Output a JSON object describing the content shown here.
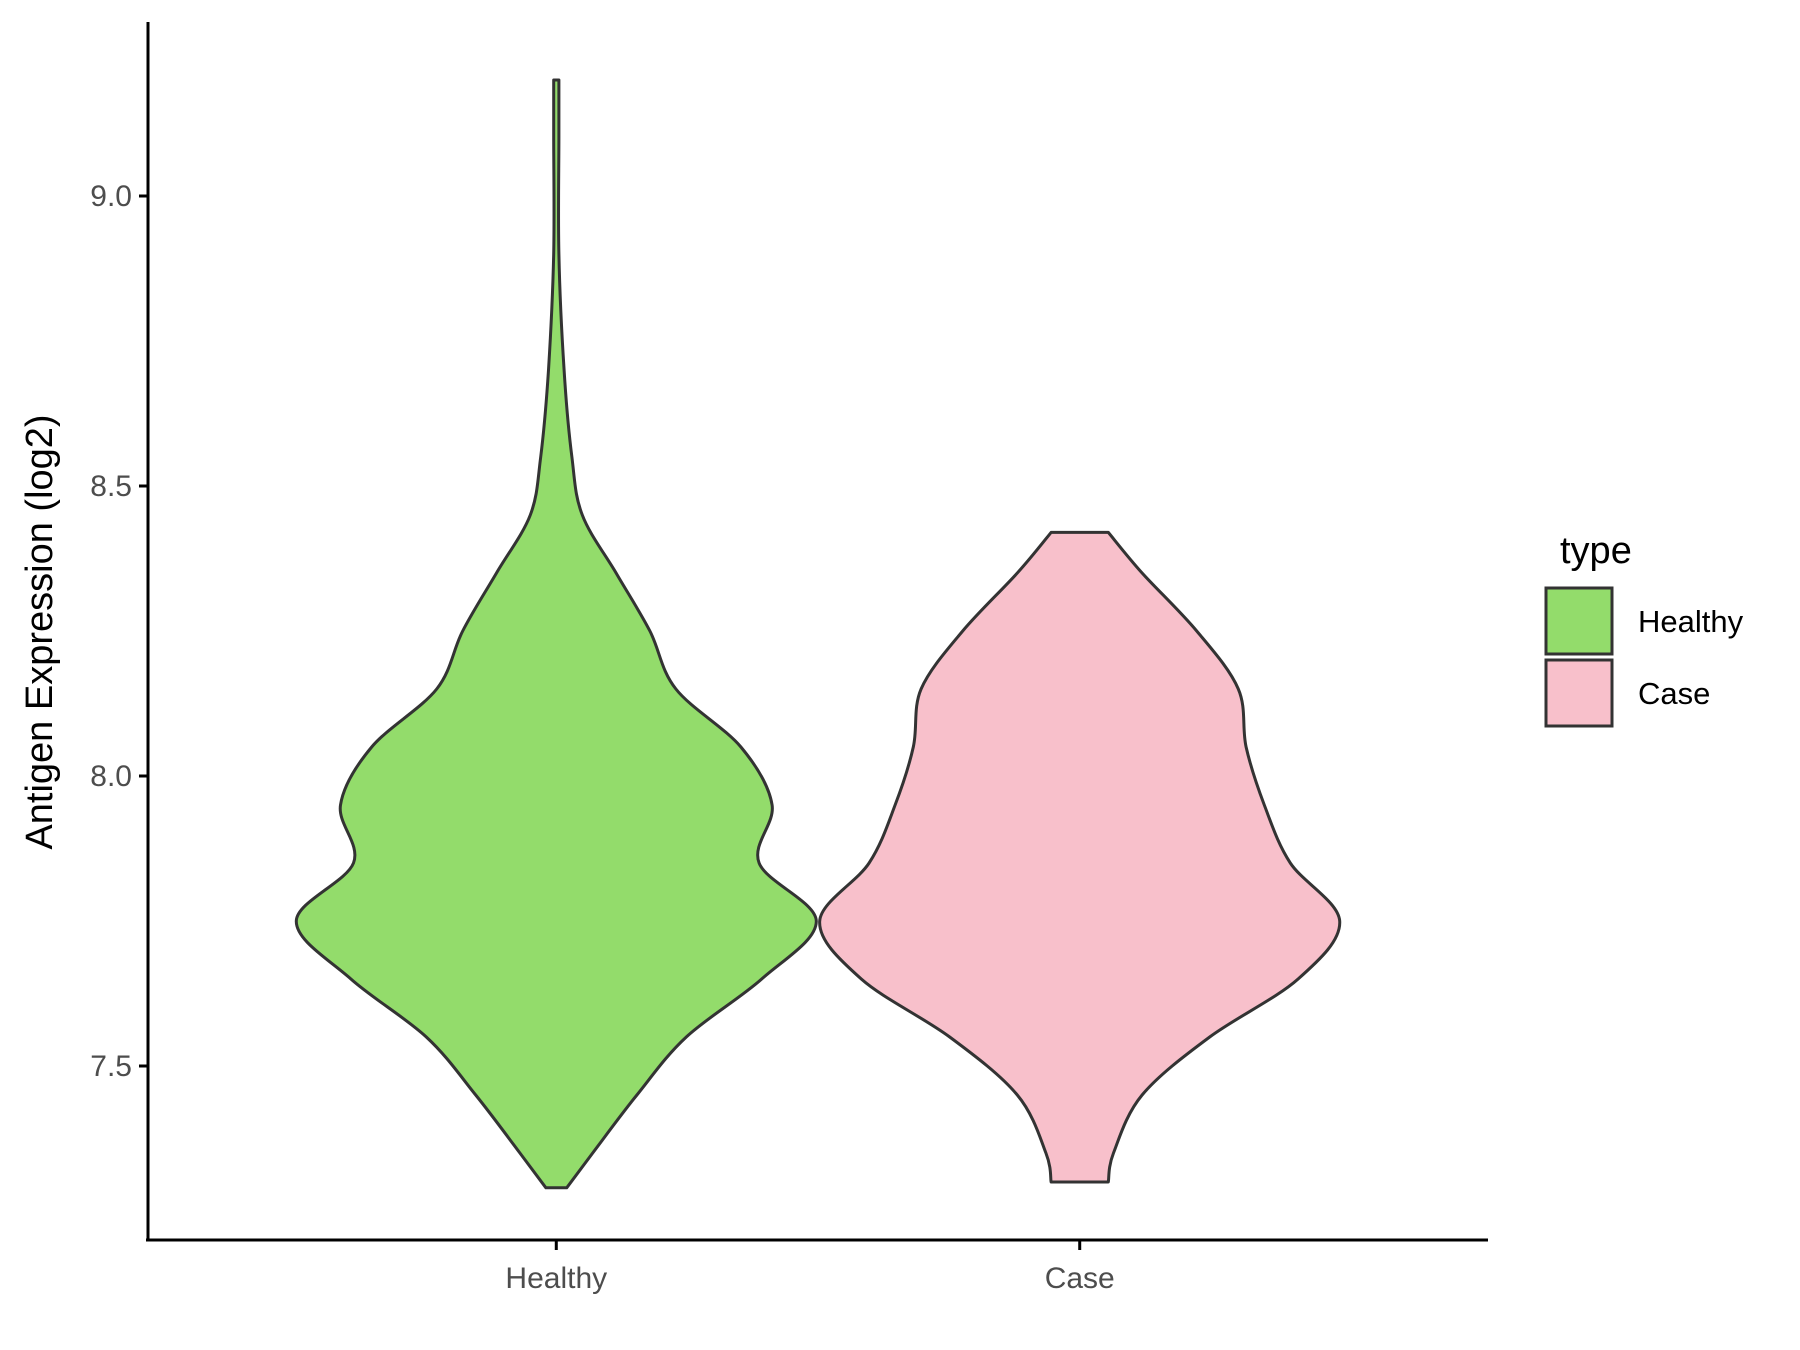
{
  "chart_data": {
    "type": "violin",
    "title": "",
    "xlabel": "",
    "ylabel": "Antigen Expression (log2)",
    "ylim": [
      7.2,
      9.3
    ],
    "yticks": [
      7.5,
      8.0,
      8.5,
      9.0
    ],
    "ytick_labels": [
      "7.5",
      "8.0",
      "8.5",
      "9.0"
    ],
    "categories": [
      "Healthy",
      "Case"
    ],
    "grid": false,
    "legend": {
      "title": "type",
      "position": "right",
      "entries": [
        "Healthy",
        "Case"
      ]
    },
    "series": [
      {
        "name": "Healthy",
        "color": "#93DC6B",
        "min": 7.29,
        "max": 9.2,
        "density_profile": [
          [
            7.29,
            0.04
          ],
          [
            7.35,
            0.14
          ],
          [
            7.45,
            0.31
          ],
          [
            7.55,
            0.5
          ],
          [
            7.65,
            0.79
          ],
          [
            7.75,
            1.0
          ],
          [
            7.85,
            0.78
          ],
          [
            7.95,
            0.83
          ],
          [
            8.05,
            0.71
          ],
          [
            8.15,
            0.46
          ],
          [
            8.25,
            0.36
          ],
          [
            8.35,
            0.23
          ],
          [
            8.45,
            0.1
          ],
          [
            8.55,
            0.06
          ],
          [
            8.7,
            0.03
          ],
          [
            8.9,
            0.01
          ],
          [
            9.1,
            0.01
          ],
          [
            9.2,
            0.01
          ]
        ]
      },
      {
        "name": "Case",
        "color": "#F8C0CB",
        "min": 7.3,
        "max": 8.42,
        "density_profile": [
          [
            7.3,
            0.11
          ],
          [
            7.35,
            0.13
          ],
          [
            7.45,
            0.24
          ],
          [
            7.55,
            0.5
          ],
          [
            7.65,
            0.84
          ],
          [
            7.75,
            1.0
          ],
          [
            7.85,
            0.81
          ],
          [
            7.95,
            0.71
          ],
          [
            8.05,
            0.64
          ],
          [
            8.15,
            0.61
          ],
          [
            8.25,
            0.45
          ],
          [
            8.35,
            0.24
          ],
          [
            8.42,
            0.11
          ]
        ]
      }
    ]
  }
}
